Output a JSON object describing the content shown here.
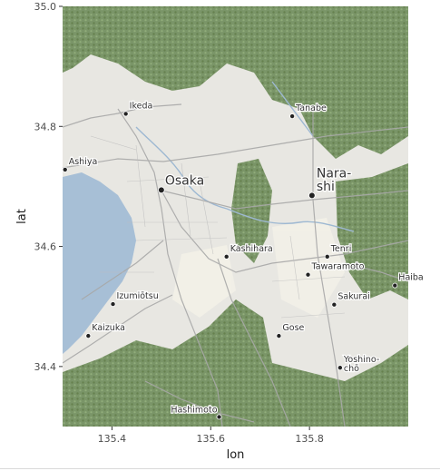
{
  "chart_data": {
    "type": "map",
    "xlabel": "lon",
    "ylabel": "lat",
    "xlim": [
      135.3,
      136.0
    ],
    "ylim": [
      34.3,
      35.0
    ],
    "x_ticks": [
      135.4,
      135.6,
      135.8
    ],
    "y_ticks": [
      34.4,
      34.6,
      34.8,
      35.0
    ],
    "x_tick_labels": [
      "135.4",
      "135.6",
      "135.8"
    ],
    "y_tick_labels": [
      "34.4",
      "34.6",
      "34.8",
      "35.0"
    ],
    "places": [
      {
        "name": "Osaka",
        "lon": 135.5,
        "lat": 34.694,
        "major": true
      },
      {
        "name": "Nara-\nshi",
        "lon": 135.805,
        "lat": 34.685,
        "major": true
      },
      {
        "name": "Ikeda",
        "lon": 135.428,
        "lat": 34.821
      },
      {
        "name": "Tanabe",
        "lon": 135.765,
        "lat": 34.817
      },
      {
        "name": "Ashiya",
        "lon": 135.305,
        "lat": 34.728
      },
      {
        "name": "Kashihara",
        "lon": 135.632,
        "lat": 34.583
      },
      {
        "name": "Tenri",
        "lon": 135.836,
        "lat": 34.583
      },
      {
        "name": "Tawaramoto",
        "lon": 135.797,
        "lat": 34.553
      },
      {
        "name": "Haiba",
        "lon": 135.973,
        "lat": 34.535
      },
      {
        "name": "Sakurai",
        "lon": 135.85,
        "lat": 34.503
      },
      {
        "name": "Izumiōtsu",
        "lon": 135.402,
        "lat": 34.504
      },
      {
        "name": "Kaizuka",
        "lon": 135.352,
        "lat": 34.451
      },
      {
        "name": "Gose",
        "lon": 135.738,
        "lat": 34.451
      },
      {
        "name": "Yoshino-\nchō",
        "lon": 135.862,
        "lat": 34.398
      },
      {
        "name": "Hashimoto",
        "lon": 135.617,
        "lat": 34.316
      }
    ]
  },
  "colors": {
    "sea": "#a7bfd6",
    "land": "#e9e8e3",
    "forest": "#6c8a58",
    "road": "#a8a8a8",
    "city_point": "#222222"
  }
}
